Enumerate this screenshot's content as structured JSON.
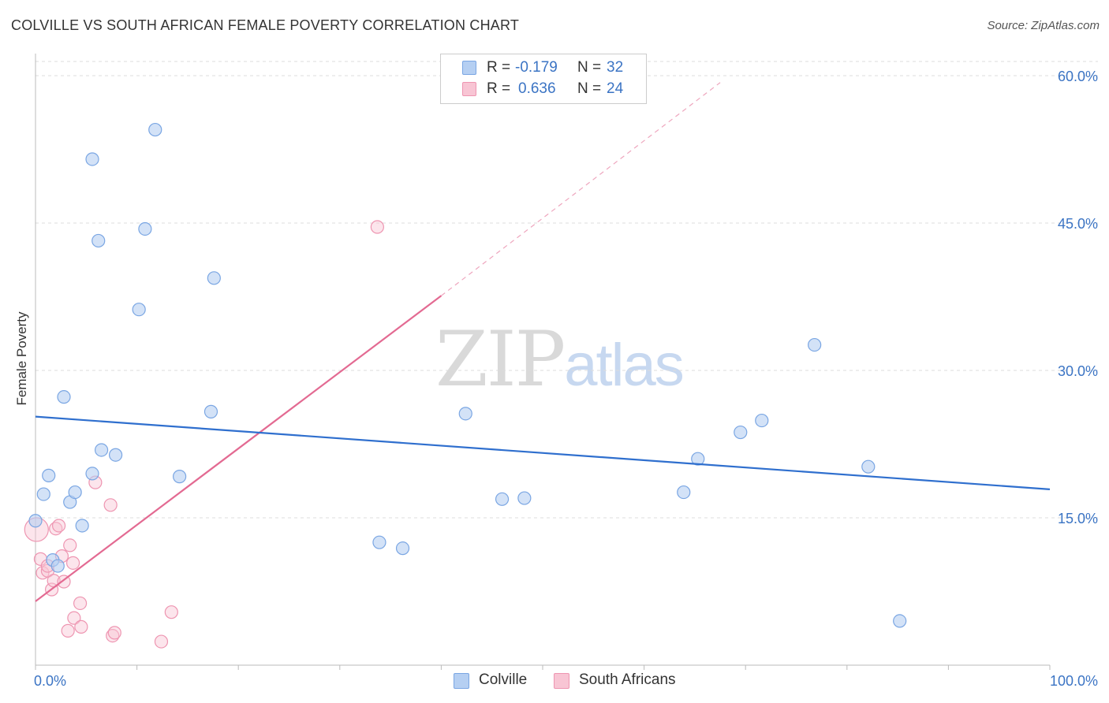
{
  "title": "COLVILLE VS SOUTH AFRICAN FEMALE POVERTY CORRELATION CHART",
  "source": "Source: ZipAtlas.com",
  "watermark": {
    "zip": "ZIP",
    "atlas": "atlas"
  },
  "legend": {
    "rows": [
      {
        "r_label": "R =",
        "r_value": "-0.179",
        "n_label": "N =",
        "n_value": "32"
      },
      {
        "r_label": "R =",
        "r_value": "0.636",
        "n_label": "N =",
        "n_value": "24"
      }
    ]
  },
  "bottom_legend": [
    "Colville",
    "South Africans"
  ],
  "colors": {
    "colville_fill": "#b5cff2",
    "colville_stroke": "#7aa6e3",
    "colville_line": "#2f6fce",
    "sa_fill": "#f8c5d4",
    "sa_stroke": "#ee95b1",
    "sa_line": "#e36a92",
    "grid": "#dcdcdc",
    "axis_text": "#3b74c4"
  },
  "chart_data": {
    "type": "scatter",
    "title": "COLVILLE VS SOUTH AFRICAN FEMALE POVERTY CORRELATION CHART",
    "xlabel": "",
    "ylabel": "Female Poverty",
    "xlim": [
      0,
      100
    ],
    "ylim": [
      0,
      60
    ],
    "x_tick_labels": [
      "0.0%",
      "100.0%"
    ],
    "y_ticks": [
      15,
      30,
      45,
      60
    ],
    "y_tick_labels": [
      "15.0%",
      "30.0%",
      "45.0%",
      "60.0%"
    ],
    "grid": true,
    "legend_position": "top-center",
    "series": [
      {
        "name": "Colville",
        "r": -0.179,
        "n": 32,
        "trend": {
          "x": [
            0,
            100
          ],
          "y": [
            25.3,
            17.9
          ]
        },
        "points": [
          [
            0.0,
            14.7
          ],
          [
            0.8,
            17.4
          ],
          [
            1.3,
            19.3
          ],
          [
            1.7,
            10.7
          ],
          [
            2.2,
            10.1
          ],
          [
            2.8,
            27.3
          ],
          [
            3.4,
            16.6
          ],
          [
            3.9,
            17.6
          ],
          [
            4.6,
            14.2
          ],
          [
            5.6,
            19.5
          ],
          [
            5.6,
            51.5
          ],
          [
            6.2,
            43.2
          ],
          [
            6.5,
            21.9
          ],
          [
            7.9,
            21.4
          ],
          [
            10.2,
            36.2
          ],
          [
            10.8,
            44.4
          ],
          [
            11.8,
            54.5
          ],
          [
            14.2,
            19.2
          ],
          [
            17.3,
            25.8
          ],
          [
            17.6,
            39.4
          ],
          [
            33.9,
            12.5
          ],
          [
            36.2,
            11.9
          ],
          [
            42.4,
            25.6
          ],
          [
            46.0,
            16.9
          ],
          [
            48.2,
            17.0
          ],
          [
            63.9,
            17.6
          ],
          [
            65.3,
            21.0
          ],
          [
            69.5,
            23.7
          ],
          [
            71.6,
            24.9
          ],
          [
            76.8,
            32.6
          ],
          [
            82.1,
            20.2
          ],
          [
            85.2,
            4.5
          ]
        ]
      },
      {
        "name": "South Africans",
        "r": 0.636,
        "n": 24,
        "trend": {
          "x": [
            0,
            40
          ],
          "y": [
            6.5,
            37.6
          ]
        },
        "trend_extension": {
          "x": [
            40,
            67.5
          ],
          "y": [
            37.6,
            59.3
          ]
        },
        "points": [
          [
            0.1,
            13.8
          ],
          [
            0.5,
            10.8
          ],
          [
            0.7,
            9.4
          ],
          [
            1.2,
            9.6
          ],
          [
            1.2,
            10.1
          ],
          [
            1.6,
            7.7
          ],
          [
            1.8,
            8.6
          ],
          [
            2.0,
            13.9
          ],
          [
            2.3,
            14.2
          ],
          [
            2.6,
            11.1
          ],
          [
            2.8,
            8.5
          ],
          [
            3.2,
            3.5
          ],
          [
            3.4,
            12.2
          ],
          [
            3.7,
            10.4
          ],
          [
            3.8,
            4.8
          ],
          [
            4.4,
            6.3
          ],
          [
            4.5,
            3.9
          ],
          [
            5.9,
            18.6
          ],
          [
            7.4,
            16.3
          ],
          [
            7.6,
            3.0
          ],
          [
            7.8,
            3.3
          ],
          [
            12.4,
            2.4
          ],
          [
            13.4,
            5.4
          ],
          [
            33.7,
            44.6
          ]
        ]
      }
    ]
  }
}
